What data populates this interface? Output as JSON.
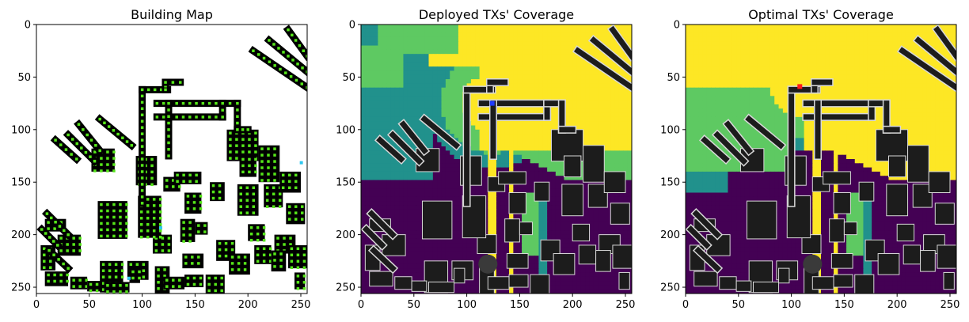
{
  "chart_data": [
    {
      "type": "heatmap",
      "title": "Building Map",
      "xlim": [
        0,
        256
      ],
      "ylim": [
        256,
        0
      ],
      "xticks": [
        0,
        50,
        100,
        150,
        200,
        250
      ],
      "yticks": [
        0,
        50,
        100,
        150,
        200,
        250
      ],
      "grid": false,
      "colors": {
        "background": "#ffffff",
        "building": "#000000",
        "candidate": "#55e619",
        "highlight": "#2ec7f0"
      }
    },
    {
      "type": "heatmap",
      "title": "Deployed TXs' Coverage",
      "xlim": [
        0,
        256
      ],
      "ylim": [
        256,
        0
      ],
      "xticks": [
        0,
        50,
        100,
        150,
        200,
        250
      ],
      "yticks": [
        0,
        50,
        100,
        150,
        200,
        250
      ],
      "grid": false,
      "tx_markers": [
        {
          "x": 124,
          "y": 75,
          "color": "#1f3bff"
        }
      ],
      "colors": {
        "low": "#440154",
        "mid": "#21918c",
        "high": "#5ec962",
        "max": "#fde725",
        "building": "#1c1c1c"
      }
    },
    {
      "type": "heatmap",
      "title": "Optimal TXs' Coverage",
      "xlim": [
        0,
        256
      ],
      "ylim": [
        256,
        0
      ],
      "xticks": [
        0,
        50,
        100,
        150,
        200,
        250
      ],
      "yticks": [
        0,
        50,
        100,
        150,
        200,
        250
      ],
      "grid": false,
      "tx_markers": [
        {
          "x": 108,
          "y": 59,
          "color": "#ff1a1a"
        }
      ],
      "colors": {
        "low": "#440154",
        "mid": "#21918c",
        "high": "#5ec962",
        "max": "#fde725",
        "building": "#1c1c1c"
      }
    }
  ]
}
